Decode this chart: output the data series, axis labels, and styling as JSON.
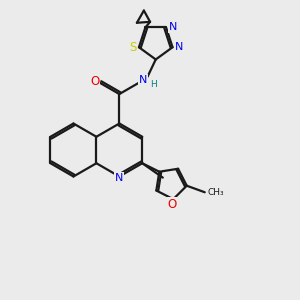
{
  "background_color": "#ebebeb",
  "bond_color": "#1a1a1a",
  "atom_colors": {
    "N": "#0000ee",
    "O": "#ee0000",
    "S": "#cccc00",
    "C": "#1a1a1a",
    "H": "#008080"
  },
  "figsize": [
    3.0,
    3.0
  ],
  "dpi": 100
}
